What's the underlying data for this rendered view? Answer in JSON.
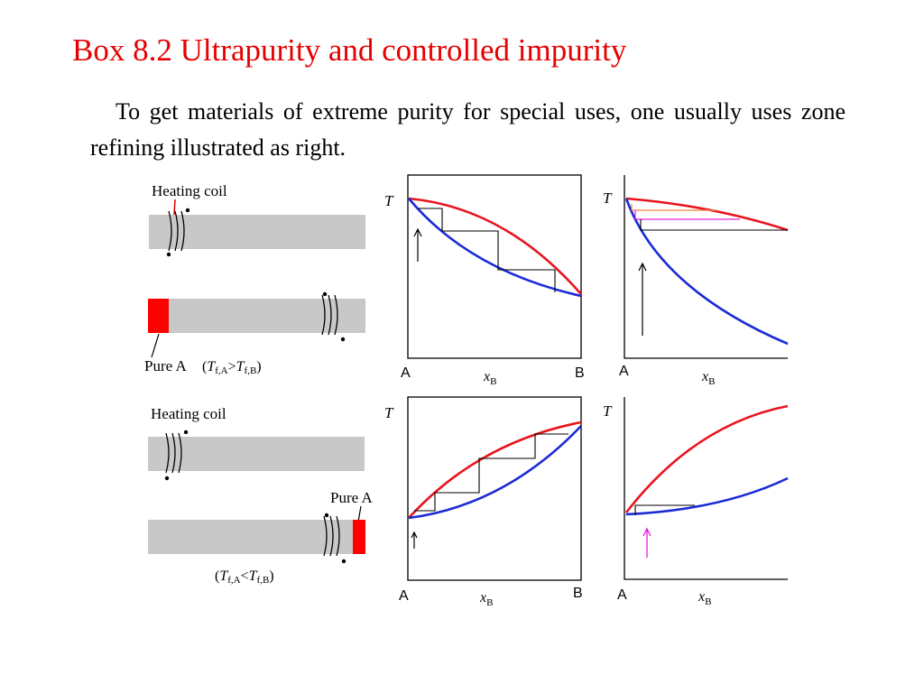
{
  "slide": {
    "title": "Box 8.2 Ultrapurity and controlled impurity",
    "paragraph": "To get materials of extreme purity for special uses, one usually uses zone refining illustrated as right."
  },
  "figure": {
    "rod_top": {
      "heating_coil_label": "Heating coil",
      "pure_label": "Pure A",
      "condition": "(Tf,A>Tf,B)"
    },
    "rod_bottom": {
      "heating_coil_label": "Heating coil",
      "pure_label": "Pure A",
      "condition": "(Tf,A<Tf,B)"
    },
    "axis": {
      "y_label": "T",
      "x_label": "x",
      "x_sub": "B",
      "left_end": "A",
      "right_end": "B"
    },
    "colors": {
      "liquidus": "#e8141e",
      "solidus": "#1a2bd6",
      "rod": "#c8c8c8",
      "pure_segment": "#ff0000",
      "highlight": "#e020e0",
      "orange_tie": "#f08040"
    }
  }
}
